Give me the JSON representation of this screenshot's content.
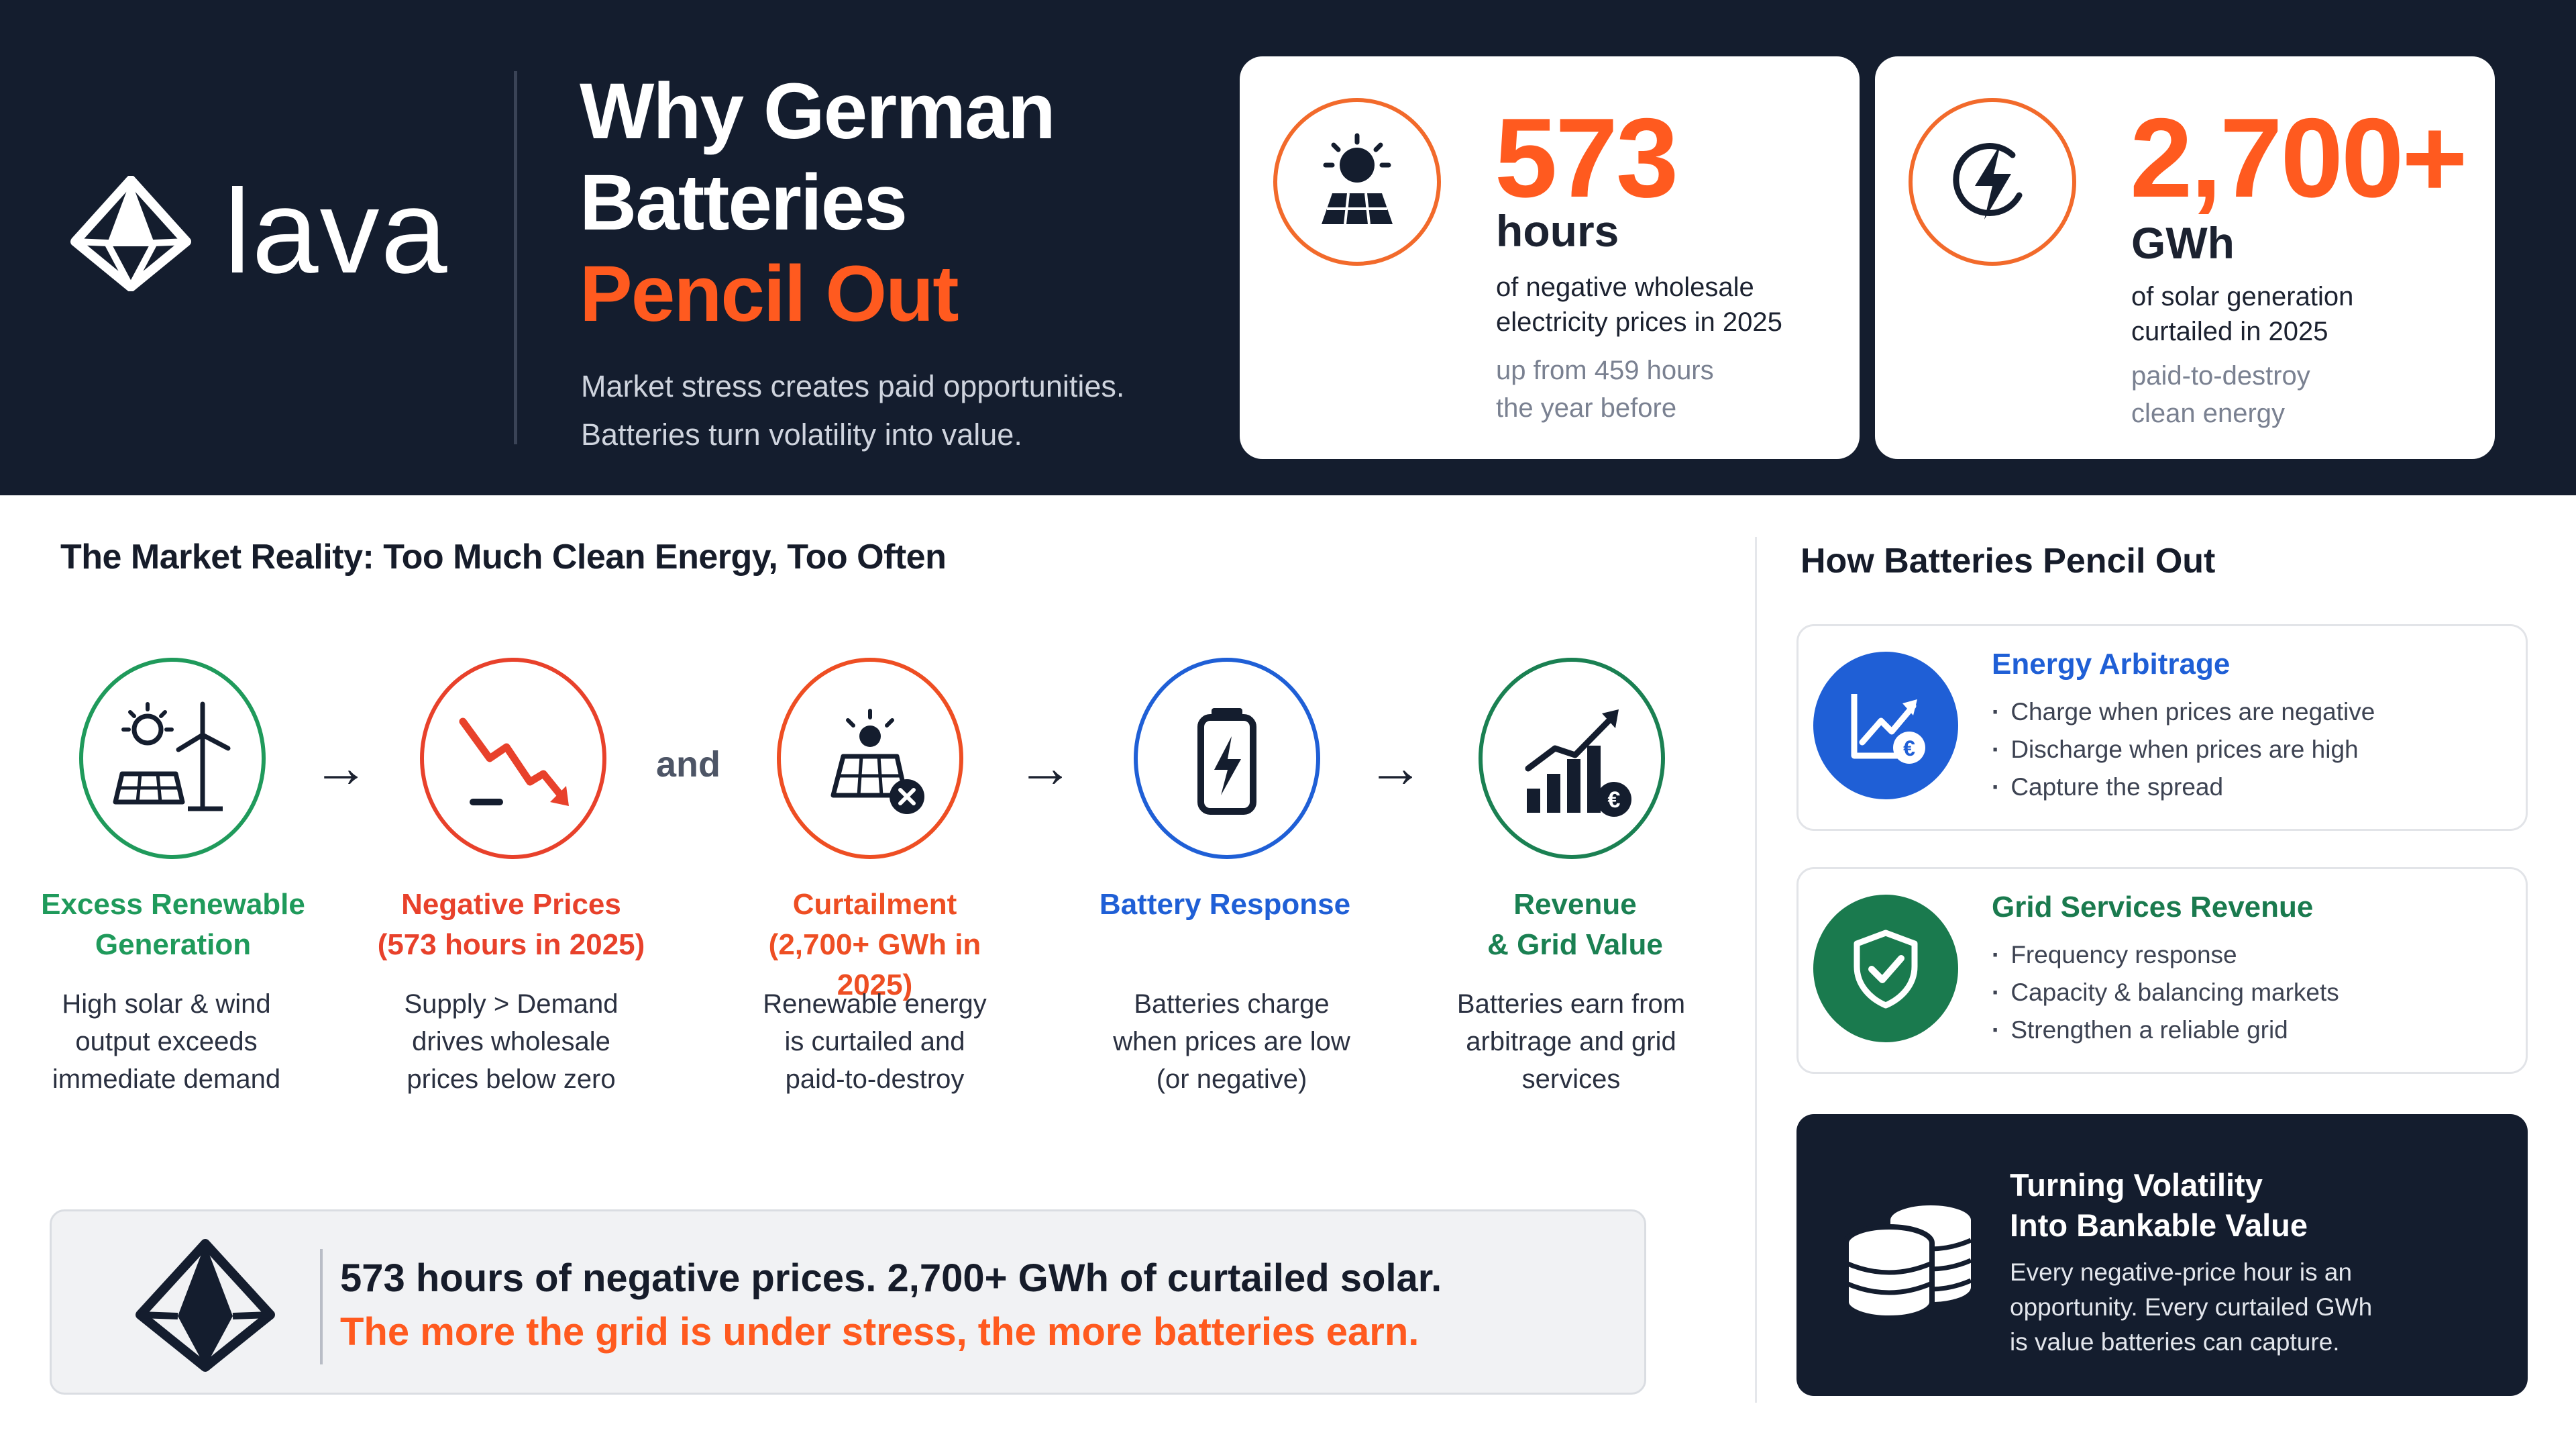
{
  "brand": {
    "name": "lava"
  },
  "header": {
    "title_line1": "Why German",
    "title_line2": "Batteries",
    "title_accent": "Pencil Out",
    "subtitle_line1": "Market stress creates paid opportunities.",
    "subtitle_line2": "Batteries turn volatility into value."
  },
  "stats": [
    {
      "value": "573",
      "unit": "hours",
      "desc_line1": "of negative wholesale",
      "desc_line2": "electricity prices in 2025",
      "note_line1": "up from 459 hours",
      "note_line2": "the year before",
      "icon": "solar-sun-icon"
    },
    {
      "value": "2,700+",
      "unit": "GWh",
      "desc_line1": "of solar generation",
      "desc_line2": "curtailed in 2025",
      "note_line1": "paid-to-destroy",
      "note_line2": "clean energy",
      "icon": "lightning-icon"
    }
  ],
  "market": {
    "title": "The Market Reality: Too Much Clean Energy, Too Often",
    "connector_and": "and",
    "arrow": "→",
    "steps": [
      {
        "label_line1": "Excess Renewable",
        "label_line2": "Generation",
        "desc_line1": "High solar & wind",
        "desc_line2": "output exceeds",
        "desc_line3": "immediate demand",
        "color": "#1f9a5b",
        "icon": "solar-wind-icon"
      },
      {
        "label_line1": "Negative Prices",
        "label_line2": "(573 hours in 2025)",
        "desc_line1": "Supply > Demand",
        "desc_line2": "drives wholesale",
        "desc_line3": "prices below zero",
        "color": "#e8412b",
        "icon": "price-drop-icon"
      },
      {
        "label_line1": "Curtailment",
        "label_line2": "(2,700+ GWh in 2025)",
        "desc_line1": "Renewable energy",
        "desc_line2": "is curtailed and",
        "desc_line3": "paid-to-destroy",
        "color": "#ee4e23",
        "icon": "solar-curtailed-icon"
      },
      {
        "label_line1": "Battery Response",
        "label_line2": "",
        "desc_line1": "Batteries charge",
        "desc_line2": "when prices are low",
        "desc_line3": "(or negative)",
        "color": "#1f5fd6",
        "icon": "battery-icon"
      },
      {
        "label_line1": "Revenue",
        "label_line2": "& Grid Value",
        "desc_line1": "Batteries earn from",
        "desc_line2": "arbitrage and grid",
        "desc_line3": "services",
        "color": "#1a8052",
        "icon": "revenue-chart-icon"
      }
    ]
  },
  "summary": {
    "line1": "573 hours of negative prices. 2,700+ GWh of curtailed solar.",
    "line2": "The more the grid is under stress, the more batteries earn."
  },
  "pencil_out": {
    "title": "How Batteries Pencil Out",
    "cards": [
      {
        "title": "Energy Arbitrage",
        "items": [
          "Charge when prices are negative",
          "Discharge when prices are high",
          "Capture the spread"
        ],
        "color": "#1f5fd6",
        "icon": "euro-chart-icon"
      },
      {
        "title": "Grid Services Revenue",
        "items": [
          "Frequency response",
          "Capacity & balancing markets",
          "Strengthen a reliable grid"
        ],
        "color": "#1a7a4e",
        "icon": "shield-check-icon"
      }
    ],
    "dark_card": {
      "title_line1": "Turning Volatility",
      "title_line2": "Into Bankable Value",
      "desc_line1": "Every negative-price hour is an",
      "desc_line2": "opportunity. Every curtailed GWh",
      "desc_line3": "is value batteries can capture.",
      "icon": "coins-icon"
    }
  },
  "colors": {
    "navy": "#141d2e",
    "orange": "#ff5a1f",
    "green": "#1f9a5b",
    "blue": "#1f5fd6"
  }
}
